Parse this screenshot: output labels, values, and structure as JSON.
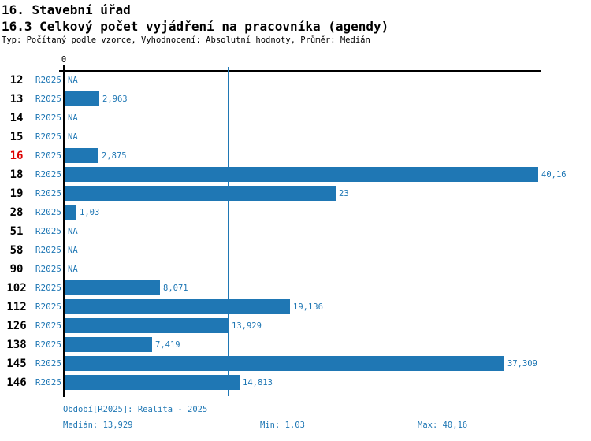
{
  "header": {
    "title1": "16. Stavební úřad",
    "title2": "16.3 Celkový počet vyjádření na pracovníka (agendy)",
    "subtitle": "Typ: Počítaný podle vzorce, Vyhodnocení: Absolutní hodnoty, Průměr: Medián"
  },
  "chart_data": {
    "type": "bar",
    "orientation": "horizontal",
    "title": "16.3 Celkový počet vyjádření na pracovníka (agendy)",
    "series_label": "R2025",
    "axis_zero_label": "0",
    "categories": [
      "12",
      "13",
      "14",
      "15",
      "16",
      "18",
      "19",
      "28",
      "51",
      "58",
      "90",
      "102",
      "112",
      "126",
      "138",
      "145",
      "146"
    ],
    "values": [
      null,
      2.963,
      null,
      null,
      2.875,
      40.16,
      23,
      1.03,
      null,
      null,
      null,
      8.071,
      19.136,
      13.929,
      7.419,
      37.309,
      14.813
    ],
    "value_labels": [
      "NA",
      "2,963",
      "NA",
      "NA",
      "2,875",
      "40,16",
      "23",
      "1,03",
      "NA",
      "NA",
      "NA",
      "8,071",
      "19,136",
      "13,929",
      "7,419",
      "37,309",
      "14,813"
    ],
    "highlighted_category": "16",
    "xlim": [
      0,
      40.5
    ],
    "median_line_value": 13.929,
    "grid": "none",
    "legend_position": "none",
    "bar_color": "#1f77b4",
    "text_color": "#1f77b4",
    "highlight_color": "#dd0000"
  },
  "footer": {
    "period": "Období[R2025]: Realita - 2025",
    "median": "Medián: 13,929",
    "min": "Min: 1,03",
    "max": "Max: 40,16"
  }
}
